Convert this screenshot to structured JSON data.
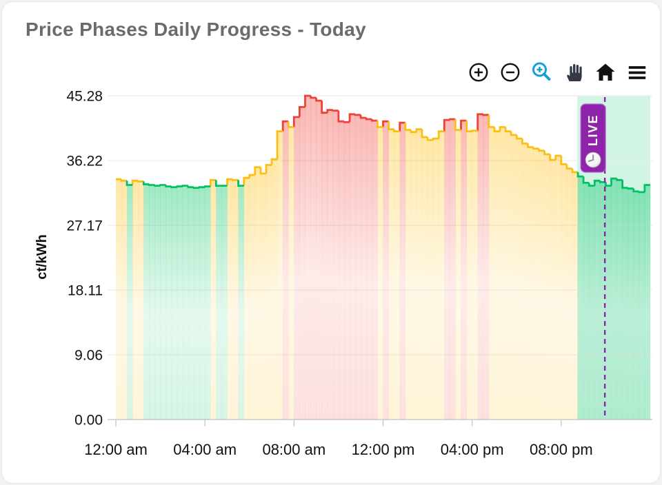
{
  "card": {
    "title": "Price Phases Daily Progress - Today"
  },
  "toolbar": {
    "icons": [
      {
        "name": "zoom-in-icon",
        "color": "#111111"
      },
      {
        "name": "zoom-out-icon",
        "color": "#111111"
      },
      {
        "name": "box-zoom-icon",
        "color": "#169fd6"
      },
      {
        "name": "pan-hand-icon",
        "color": "#333a45"
      },
      {
        "name": "home-icon",
        "color": "#111111"
      },
      {
        "name": "menu-icon",
        "color": "#111111"
      }
    ]
  },
  "chart_data": {
    "type": "area",
    "title": "Price Phases Daily Progress - Today",
    "xlabel": "",
    "ylabel": "ct/kWh",
    "unit": "ct/kWh",
    "ylim": [
      0,
      45.28
    ],
    "xlim_hours": [
      0,
      24
    ],
    "grid": "horizontal",
    "y_ticks": [
      {
        "value": 0,
        "label": "0.00"
      },
      {
        "value": 9.06,
        "label": "9.06"
      },
      {
        "value": 18.11,
        "label": "18.11"
      },
      {
        "value": 27.17,
        "label": "27.17"
      },
      {
        "value": 36.22,
        "label": "36.22"
      },
      {
        "value": 45.28,
        "label": "45.28"
      }
    ],
    "x_ticks": [
      {
        "hour": 0,
        "label": "12:00 am"
      },
      {
        "hour": 4,
        "label": "04:00 am"
      },
      {
        "hour": 8,
        "label": "08:00 am"
      },
      {
        "hour": 12,
        "label": "12:00 pm"
      },
      {
        "hour": 16,
        "label": "04:00 pm"
      },
      {
        "hour": 20,
        "label": "08:00 pm"
      }
    ],
    "step_minutes": 15,
    "values": [
      33.6,
      33.4,
      32.8,
      33.4,
      33.3,
      32.9,
      32.8,
      32.7,
      32.8,
      32.6,
      32.5,
      32.6,
      32.7,
      32.5,
      32.4,
      32.5,
      32.6,
      33.5,
      32.7,
      32.7,
      33.6,
      33.5,
      32.7,
      33.8,
      34.2,
      35.3,
      34.4,
      35.6,
      36.4,
      40.3,
      41.7,
      40.9,
      42.3,
      43.7,
      45.28,
      45.0,
      44.6,
      42.9,
      43.3,
      43.2,
      41.7,
      41.6,
      42.7,
      42.6,
      42.2,
      42.0,
      41.8,
      40.9,
      41.7,
      40.6,
      40.3,
      41.5,
      40.5,
      40.2,
      40.6,
      39.5,
      39.1,
      39.3,
      40.3,
      41.9,
      42.0,
      40.5,
      41.8,
      40.3,
      40.4,
      42.7,
      42.6,
      40.9,
      40.3,
      40.9,
      40.3,
      39.8,
      39.3,
      38.6,
      38.1,
      37.9,
      37.6,
      37.1,
      36.3,
      36.9,
      35.7,
      35.1,
      34.6,
      34.0,
      33.1,
      32.7,
      33.4,
      33.2,
      32.7,
      33.7,
      33.5,
      32.4,
      32.3,
      31.9,
      31.8,
      32.8
    ],
    "phases": [
      "yygyyggg",
      "gggggggg",
      "gyggyygy",
      "yyyyyyry",
      "rrrrrrrr",
      "rrrrrrry",
      "ryyryyyy",
      "yyyrryry",
      "yrryyyyy",
      "yyyyyyyy",
      "yyyggggg",
      "gggggggg"
    ],
    "phase_colors": {
      "g": "#00c261",
      "y": "#fcbe12",
      "r": "#ee4238"
    },
    "future_band": {
      "start_hour": 20.72,
      "end_hour": 24,
      "color": "#00c070",
      "opacity": 0.18
    },
    "live_marker": {
      "hour": 21.96,
      "label": "LIVE",
      "color": "#8e24aa",
      "icon": "clock"
    }
  }
}
